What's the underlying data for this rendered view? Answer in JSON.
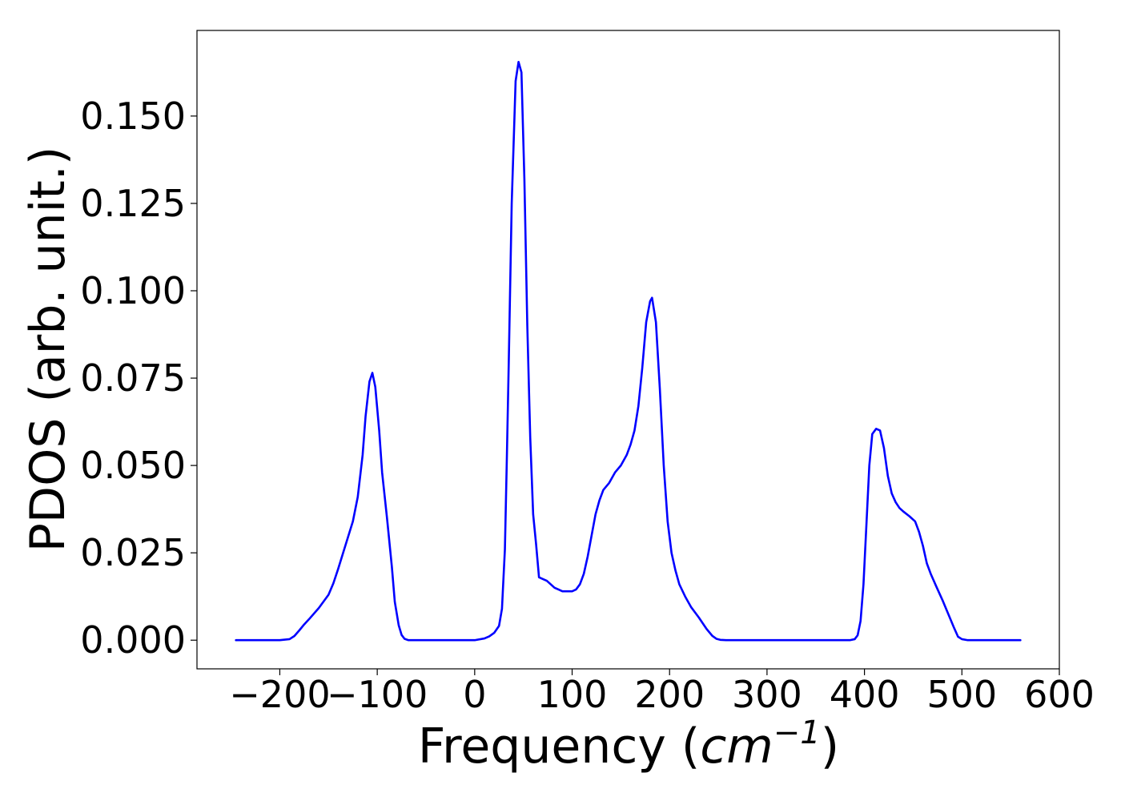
{
  "chart_data": {
    "type": "line",
    "title": "",
    "xlabel_main": "Frequency (",
    "xlabel_unit_base": "cm",
    "xlabel_unit_exp": "−1",
    "xlabel_close": ")",
    "ylabel": "PDOS (arb. unit.)",
    "xlim": [
      -285,
      600
    ],
    "ylim": [
      -0.0082,
      0.1745
    ],
    "xticks": [
      -200,
      -100,
      0,
      100,
      200,
      300,
      400,
      500,
      600
    ],
    "xtick_labels": [
      "−200",
      "−100",
      "0",
      "100",
      "200",
      "300",
      "400",
      "500",
      "600"
    ],
    "yticks": [
      0.0,
      0.025,
      0.05,
      0.075,
      0.1,
      0.125,
      0.15
    ],
    "ytick_labels": [
      "0.000",
      "0.025",
      "0.050",
      "0.075",
      "0.100",
      "0.125",
      "0.150"
    ],
    "grid": false,
    "series": [
      {
        "color": "#0000ff",
        "x": [
          -245,
          -200,
          -190,
          -185,
          -180,
          -175,
          -170,
          -160,
          -150,
          -145,
          -140,
          -135,
          -130,
          -125,
          -120,
          -115,
          -112,
          -108,
          -105,
          -102,
          -98,
          -95,
          -90,
          -85,
          -82,
          -78,
          -75,
          -72,
          -68,
          -60,
          -40,
          -20,
          0,
          10,
          15,
          20,
          25,
          28,
          31,
          33,
          35,
          38,
          42,
          45,
          48,
          51,
          54,
          57,
          60,
          63,
          66,
          70,
          74,
          78,
          82,
          86,
          90,
          95,
          100,
          104,
          108,
          112,
          116,
          120,
          124,
          128,
          132,
          138,
          144,
          150,
          156,
          160,
          164,
          168,
          172,
          176,
          180,
          182,
          186,
          190,
          194,
          198,
          202,
          206,
          210,
          216,
          222,
          230,
          238,
          244,
          248,
          252,
          258,
          270,
          300,
          350,
          385,
          390,
          393,
          396,
          399,
          402,
          405,
          408,
          412,
          416,
          420,
          424,
          428,
          432,
          436,
          440,
          446,
          452,
          456,
          460,
          464,
          468,
          474,
          480,
          486,
          492,
          496,
          500,
          506,
          520,
          560
        ],
        "y": [
          0,
          0,
          0.0003,
          0.0012,
          0.0028,
          0.0045,
          0.006,
          0.0092,
          0.013,
          0.0163,
          0.0205,
          0.025,
          0.0295,
          0.034,
          0.041,
          0.053,
          0.064,
          0.074,
          0.0765,
          0.0725,
          0.06,
          0.048,
          0.035,
          0.021,
          0.011,
          0.0043,
          0.0015,
          0.0004,
          0,
          0,
          0,
          0,
          0,
          0.0005,
          0.0011,
          0.0021,
          0.0041,
          0.009,
          0.026,
          0.052,
          0.08,
          0.125,
          0.16,
          0.1655,
          0.1625,
          0.132,
          0.09,
          0.058,
          0.036,
          0.0275,
          0.018,
          0.0175,
          0.017,
          0.016,
          0.015,
          0.0145,
          0.014,
          0.014,
          0.014,
          0.0145,
          0.016,
          0.019,
          0.024,
          0.03,
          0.036,
          0.04,
          0.043,
          0.045,
          0.048,
          0.05,
          0.053,
          0.056,
          0.06,
          0.067,
          0.078,
          0.091,
          0.097,
          0.098,
          0.091,
          0.072,
          0.05,
          0.034,
          0.025,
          0.02,
          0.016,
          0.0125,
          0.0095,
          0.0065,
          0.0032,
          0.0012,
          0.0004,
          0.0001,
          0,
          0,
          0,
          0,
          0,
          0.0003,
          0.0014,
          0.0055,
          0.016,
          0.033,
          0.05,
          0.059,
          0.0605,
          0.06,
          0.055,
          0.047,
          0.042,
          0.0395,
          0.0378,
          0.0368,
          0.0355,
          0.034,
          0.031,
          0.027,
          0.022,
          0.019,
          0.0152,
          0.0115,
          0.0075,
          0.0035,
          0.001,
          0.0003,
          0,
          0,
          0
        ]
      }
    ]
  }
}
